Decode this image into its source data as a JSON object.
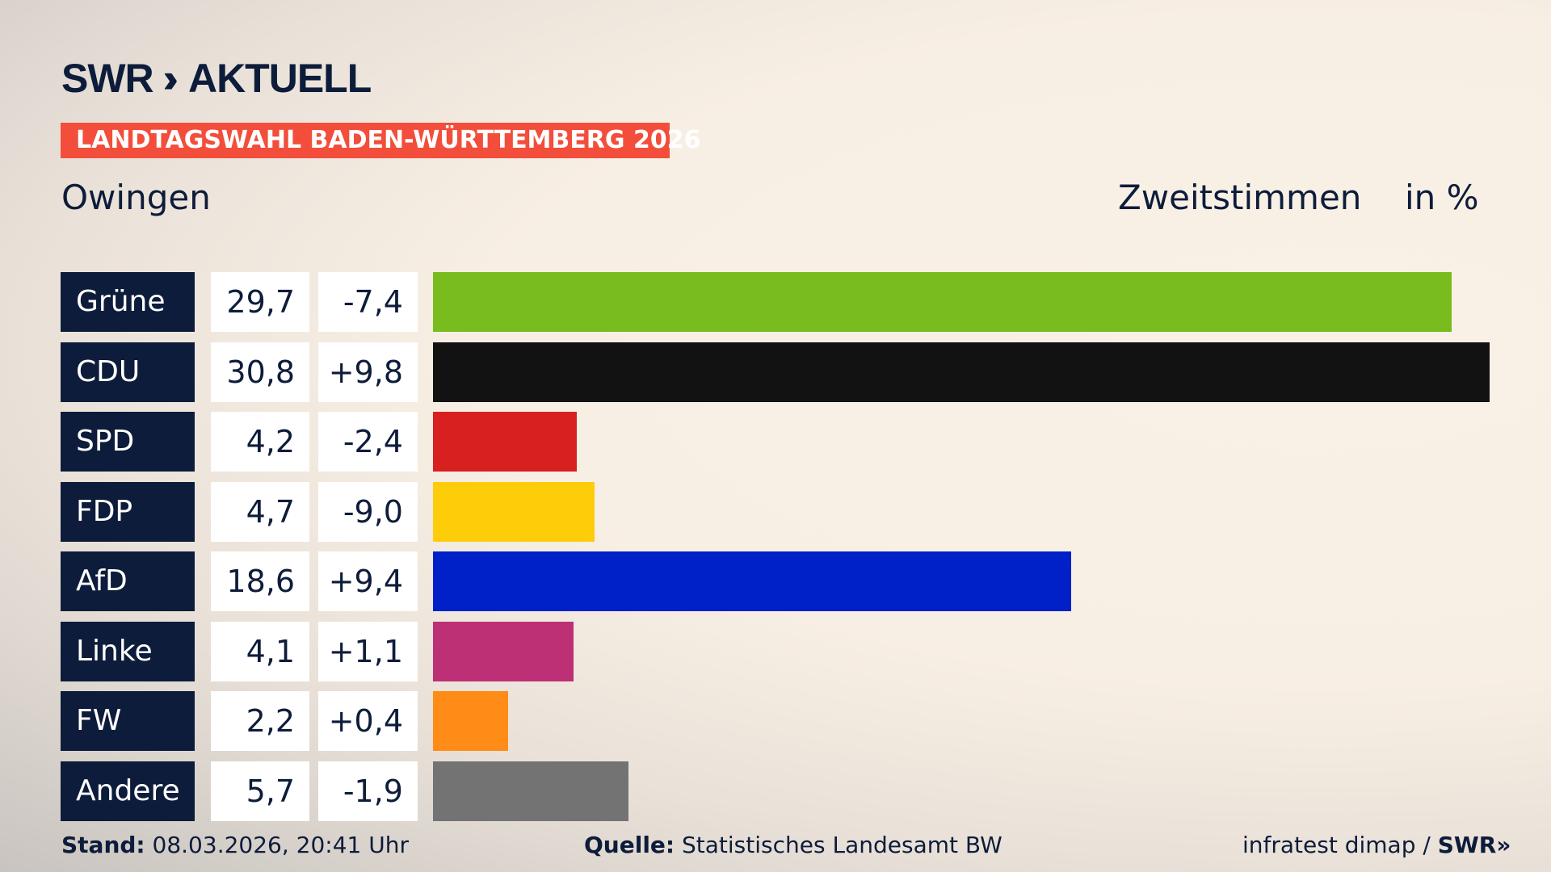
{
  "header": {
    "logo": "SWR» AKTUELL",
    "logo_brand": "SWR",
    "logo_product": "AKTUELL",
    "banner": "LANDTAGSWAHL BADEN-WÜRTTEMBERG 2026",
    "place": "Owingen",
    "metric": "Zweitstimmen",
    "unit": "in %"
  },
  "chart_data": {
    "type": "bar",
    "orientation": "horizontal",
    "categories": [
      "Grüne",
      "CDU",
      "SPD",
      "FDP",
      "AfD",
      "Linke",
      "FW",
      "Andere"
    ],
    "values": [
      29.7,
      30.8,
      4.2,
      4.7,
      18.6,
      4.1,
      2.2,
      5.7
    ],
    "value_labels": [
      "29,7",
      "30,8",
      "4,2",
      "4,7",
      "18,6",
      "4,1",
      "2,2",
      "5,7"
    ],
    "diffs": [
      -7.4,
      9.8,
      -2.4,
      -9.0,
      9.4,
      1.1,
      0.4,
      -1.9
    ],
    "diff_labels": [
      "-7,4",
      "+9,8",
      "-2,4",
      "-9,0",
      "+9,4",
      "+1,1",
      "+0,4",
      "-1,9"
    ],
    "colors": [
      "#78bc1e",
      "#121212",
      "#d7201f",
      "#fecd0a",
      "#0020c8",
      "#bd3075",
      "#ff8c17",
      "#737373"
    ],
    "xlim": [
      0,
      30.8
    ],
    "grid": false
  },
  "footer": {
    "stand_label": "Stand:",
    "stand_value": "08.03.2026, 20:41 Uhr",
    "source_label": "Quelle:",
    "source_value": "Statistisches Landesamt BW",
    "credit": "infratest dimap / ",
    "credit_logo": "SWR»"
  }
}
